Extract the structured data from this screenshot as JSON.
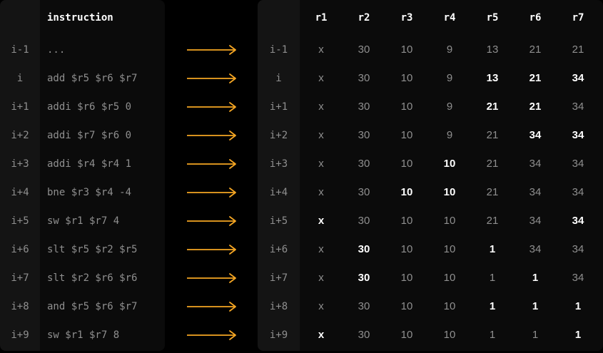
{
  "left_header": {
    "index": "",
    "instruction": "instruction"
  },
  "right_header": {
    "index": "",
    "registers": [
      "r1",
      "r2",
      "r3",
      "r4",
      "r5",
      "r6",
      "r7"
    ]
  },
  "arrow_color": "#f5a623",
  "rows": [
    {
      "index": "i-1",
      "instruction": "...",
      "values": [
        "x",
        "30",
        "10",
        "9",
        "13",
        "21",
        "21"
      ],
      "highlight": [
        false,
        false,
        false,
        false,
        false,
        false,
        false
      ]
    },
    {
      "index": "i",
      "instruction": "add $r5 $r6 $r7",
      "values": [
        "x",
        "30",
        "10",
        "9",
        "13",
        "21",
        "34"
      ],
      "highlight": [
        false,
        false,
        false,
        false,
        true,
        true,
        true
      ]
    },
    {
      "index": "i+1",
      "instruction": "addi $r6 $r5 0",
      "values": [
        "x",
        "30",
        "10",
        "9",
        "21",
        "21",
        "34"
      ],
      "highlight": [
        false,
        false,
        false,
        false,
        true,
        true,
        false
      ]
    },
    {
      "index": "i+2",
      "instruction": "addi $r7 $r6 0",
      "values": [
        "x",
        "30",
        "10",
        "9",
        "21",
        "34",
        "34"
      ],
      "highlight": [
        false,
        false,
        false,
        false,
        false,
        true,
        true
      ]
    },
    {
      "index": "i+3",
      "instruction": "addi $r4 $r4 1",
      "values": [
        "x",
        "30",
        "10",
        "10",
        "21",
        "34",
        "34"
      ],
      "highlight": [
        false,
        false,
        false,
        true,
        false,
        false,
        false
      ]
    },
    {
      "index": "i+4",
      "instruction": "bne $r3 $r4 -4",
      "values": [
        "x",
        "30",
        "10",
        "10",
        "21",
        "34",
        "34"
      ],
      "highlight": [
        false,
        false,
        true,
        true,
        false,
        false,
        false
      ]
    },
    {
      "index": "i+5",
      "instruction": "sw $r1 $r7 4",
      "values": [
        "x",
        "30",
        "10",
        "10",
        "21",
        "34",
        "34"
      ],
      "highlight": [
        true,
        false,
        false,
        false,
        false,
        false,
        true
      ]
    },
    {
      "index": "i+6",
      "instruction": "slt $r5 $r2 $r5",
      "values": [
        "x",
        "30",
        "10",
        "10",
        "1",
        "34",
        "34"
      ],
      "highlight": [
        false,
        true,
        false,
        false,
        true,
        false,
        false
      ]
    },
    {
      "index": "i+7",
      "instruction": "slt $r2 $r6 $r6",
      "values": [
        "x",
        "30",
        "10",
        "10",
        "1",
        "1",
        "34"
      ],
      "highlight": [
        false,
        true,
        false,
        false,
        false,
        true,
        false
      ]
    },
    {
      "index": "i+8",
      "instruction": "and $r5 $r6 $r7",
      "values": [
        "x",
        "30",
        "10",
        "10",
        "1",
        "1",
        "1"
      ],
      "highlight": [
        false,
        false,
        false,
        false,
        true,
        true,
        true
      ]
    },
    {
      "index": "i+9",
      "instruction": "sw $r1 $r7 8",
      "values": [
        "x",
        "30",
        "10",
        "10",
        "1",
        "1",
        "1"
      ],
      "highlight": [
        true,
        false,
        false,
        false,
        false,
        false,
        true
      ]
    }
  ]
}
